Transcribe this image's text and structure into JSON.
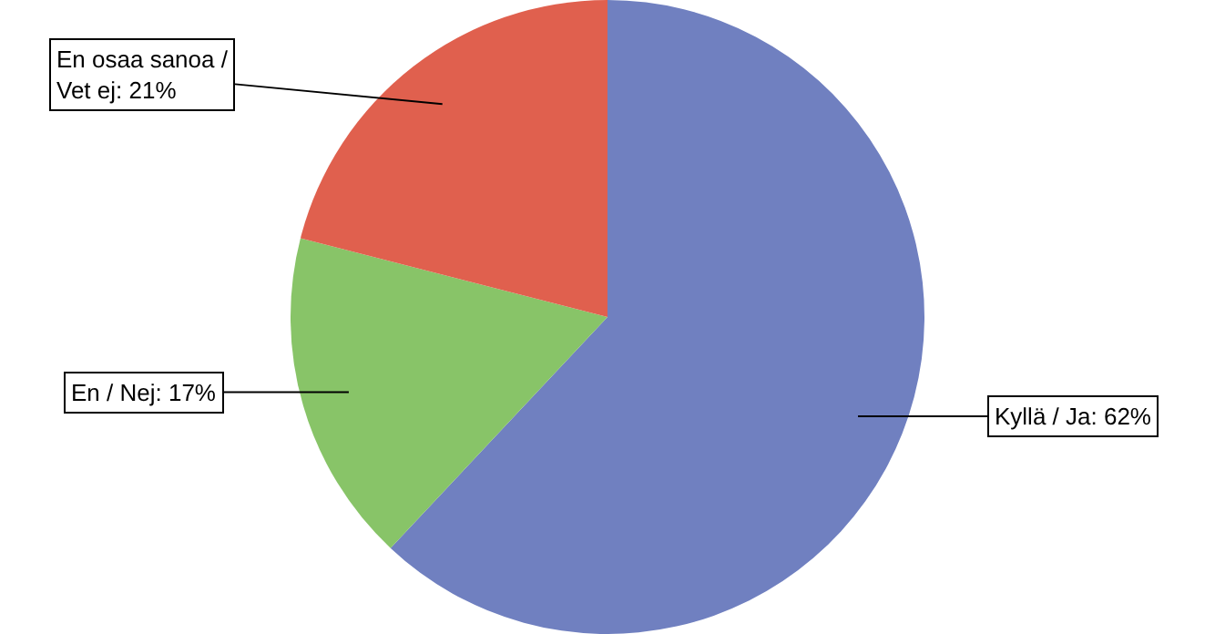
{
  "chart_data": {
    "type": "pie",
    "categories": [
      "Kyllä / Ja",
      "En / Nej",
      "En osaa sanoa / Vet ej"
    ],
    "values": [
      62,
      17,
      21
    ],
    "value_labels": [
      "62%",
      "17%",
      "21%"
    ],
    "colors": [
      "#7080c0",
      "#88c468",
      "#e0604e"
    ],
    "legend": false
  }
}
